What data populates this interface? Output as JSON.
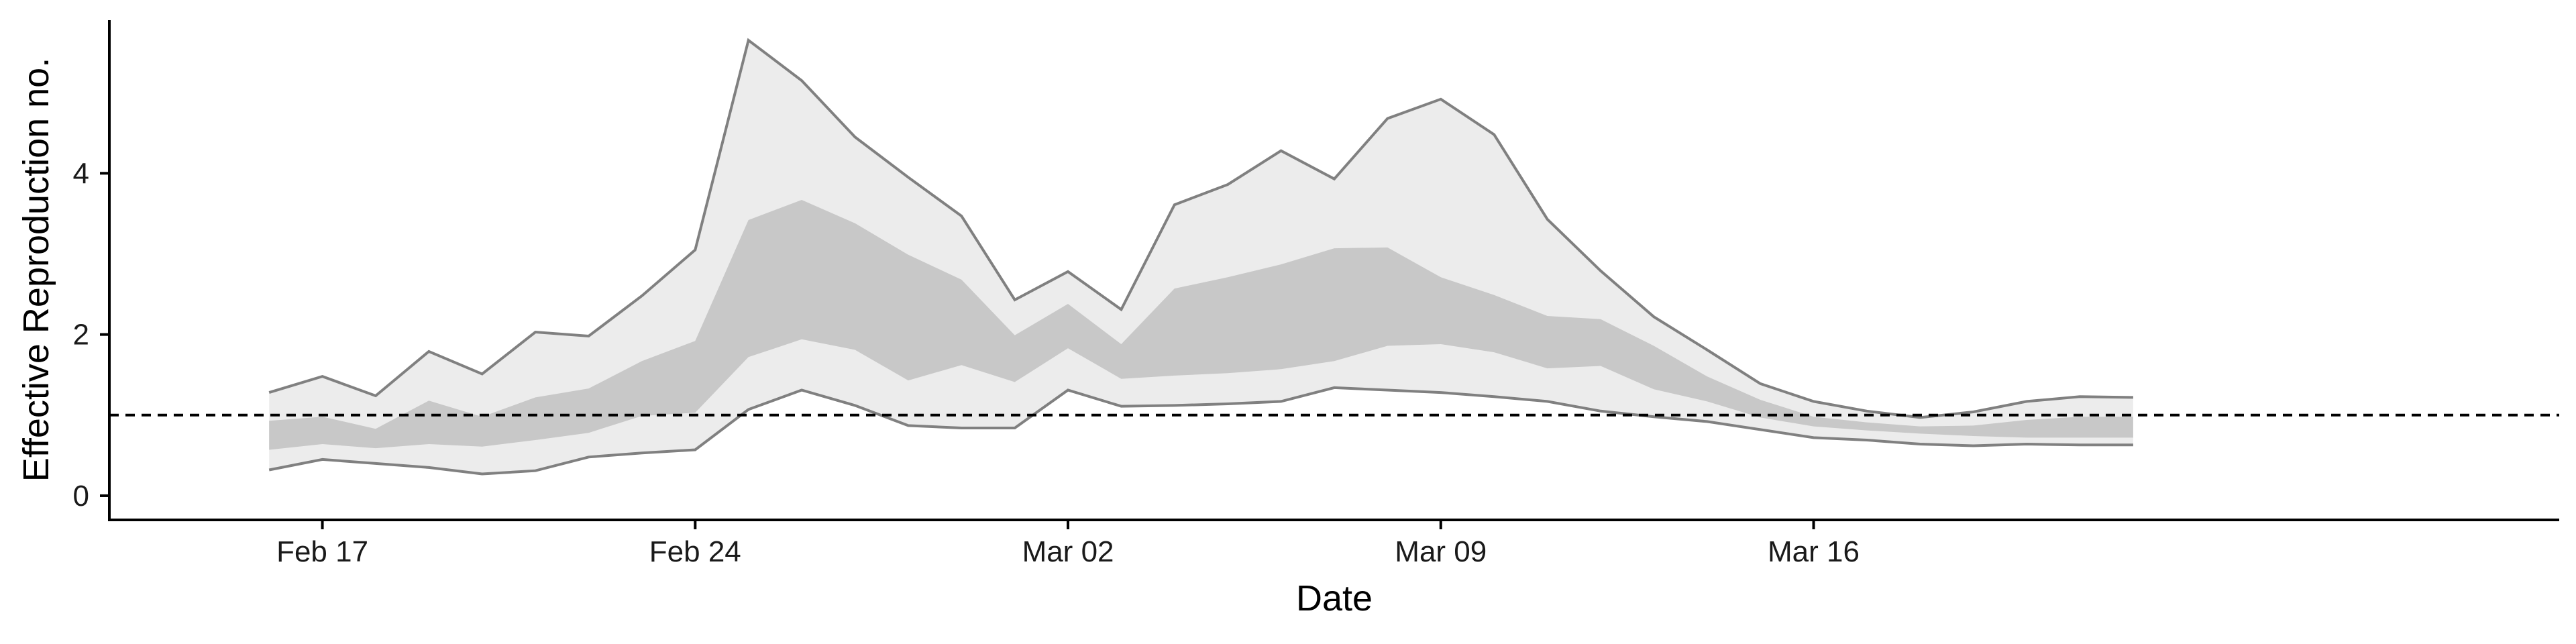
{
  "chart_data": {
    "type": "area",
    "xlabel": "Date",
    "ylabel": "Effective Reproduction no.",
    "x_ticks": [
      {
        "date": "2020-02-17",
        "label": "Feb 17"
      },
      {
        "date": "2020-02-24",
        "label": "Feb 24"
      },
      {
        "date": "2020-03-02",
        "label": "Mar 02"
      },
      {
        "date": "2020-03-09",
        "label": "Mar 09"
      },
      {
        "date": "2020-03-16",
        "label": "Mar 16"
      }
    ],
    "y_ticks": [
      0,
      2,
      4
    ],
    "xlim": [
      "2020-02-13",
      "2020-03-30"
    ],
    "ylim": [
      -0.3,
      5.9
    ],
    "reference_line": {
      "y": 1,
      "style": "dashed"
    },
    "grid": false,
    "dates": [
      "2020-02-16",
      "2020-02-17",
      "2020-02-18",
      "2020-02-19",
      "2020-02-20",
      "2020-02-21",
      "2020-02-22",
      "2020-02-23",
      "2020-02-24",
      "2020-02-25",
      "2020-02-26",
      "2020-02-27",
      "2020-02-28",
      "2020-02-29",
      "2020-03-01",
      "2020-03-02",
      "2020-03-03",
      "2020-03-04",
      "2020-03-05",
      "2020-03-06",
      "2020-03-07",
      "2020-03-08",
      "2020-03-09",
      "2020-03-10",
      "2020-03-11",
      "2020-03-12",
      "2020-03-13",
      "2020-03-14",
      "2020-03-15",
      "2020-03-16",
      "2020-03-17",
      "2020-03-18",
      "2020-03-19",
      "2020-03-20",
      "2020-03-21",
      "2020-03-22"
    ],
    "series": [
      {
        "role": "upper_outer",
        "values": [
          1.28,
          1.48,
          1.24,
          1.79,
          1.51,
          2.03,
          1.98,
          2.48,
          3.05,
          5.65,
          5.15,
          4.45,
          3.95,
          3.47,
          2.43,
          2.78,
          2.31,
          3.61,
          3.86,
          4.28,
          3.93,
          4.68,
          4.92,
          4.48,
          3.43,
          2.79,
          2.22,
          1.81,
          1.39,
          1.17,
          1.05,
          0.97,
          1.04,
          1.17,
          1.23,
          1.22
        ]
      },
      {
        "role": "upper_inner",
        "values": [
          0.93,
          0.98,
          0.83,
          1.18,
          0.98,
          1.22,
          1.33,
          1.67,
          1.92,
          3.42,
          3.67,
          3.38,
          2.99,
          2.68,
          1.99,
          2.38,
          1.88,
          2.57,
          2.71,
          2.87,
          3.07,
          3.08,
          2.71,
          2.49,
          2.23,
          2.19,
          1.86,
          1.48,
          1.19,
          0.98,
          0.91,
          0.86,
          0.87,
          0.94,
          0.98,
          0.98
        ]
      },
      {
        "role": "lower_inner",
        "values": [
          0.57,
          0.64,
          0.59,
          0.64,
          0.61,
          0.69,
          0.78,
          0.99,
          1.03,
          1.72,
          1.94,
          1.81,
          1.43,
          1.62,
          1.41,
          1.83,
          1.45,
          1.49,
          1.52,
          1.57,
          1.67,
          1.86,
          1.88,
          1.78,
          1.58,
          1.61,
          1.32,
          1.17,
          0.97,
          0.86,
          0.81,
          0.77,
          0.74,
          0.72,
          0.72,
          0.72
        ]
      },
      {
        "role": "lower_outer",
        "values": [
          0.32,
          0.45,
          0.4,
          0.35,
          0.27,
          0.31,
          0.48,
          0.53,
          0.57,
          1.07,
          1.31,
          1.12,
          0.87,
          0.84,
          0.84,
          1.31,
          1.11,
          1.12,
          1.14,
          1.17,
          1.34,
          1.31,
          1.28,
          1.23,
          1.17,
          1.05,
          0.98,
          0.92,
          0.82,
          0.72,
          0.69,
          0.64,
          0.62,
          0.64,
          0.63,
          0.63
        ]
      }
    ],
    "colors": {
      "outer_band": "#ececec",
      "inner_band": "#c8c8c8",
      "bound_line": "#808080",
      "reference_line": "#000000",
      "axis": "#000000"
    }
  }
}
